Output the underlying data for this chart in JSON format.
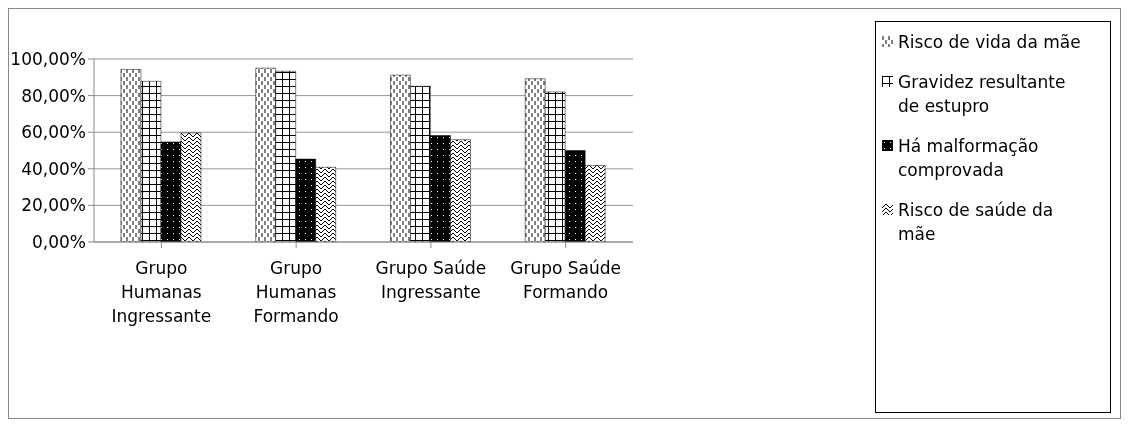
{
  "chart_data": {
    "type": "bar",
    "categories": [
      "Grupo Humanas Ingressante",
      "Grupo Humanas Formando",
      "Grupo Saúde Ingressante",
      "Grupo Saúde Formando"
    ],
    "series": [
      {
        "name": "Risco de vida da mãe",
        "color": "#000000",
        "values": [
          94.3,
          95,
          91.2,
          89.2
        ]
      },
      {
        "name": "Gravidez resultante de estupro",
        "color": "#000000",
        "values": [
          87.8,
          93.3,
          85.1,
          82
        ]
      },
      {
        "name": "Há malformação comprovada",
        "color": "#000000",
        "values": [
          54.7,
          45.3,
          58.2,
          50
        ]
      },
      {
        "name": "Risco de saúde da mãe",
        "color": "#000000",
        "values": [
          59.6,
          40.8,
          55.9,
          41.8
        ]
      }
    ],
    "ylim": [
      0,
      100
    ],
    "yticks": [
      {
        "value": 0,
        "label": "0,00%"
      },
      {
        "value": 20,
        "label": "20,00%"
      },
      {
        "value": 40,
        "label": "40,00%"
      },
      {
        "value": 60,
        "label": "60,00%"
      },
      {
        "value": 80,
        "label": "80,00%"
      },
      {
        "value": 100,
        "label": "100,00%"
      }
    ],
    "grid": "y",
    "legend": "right"
  }
}
